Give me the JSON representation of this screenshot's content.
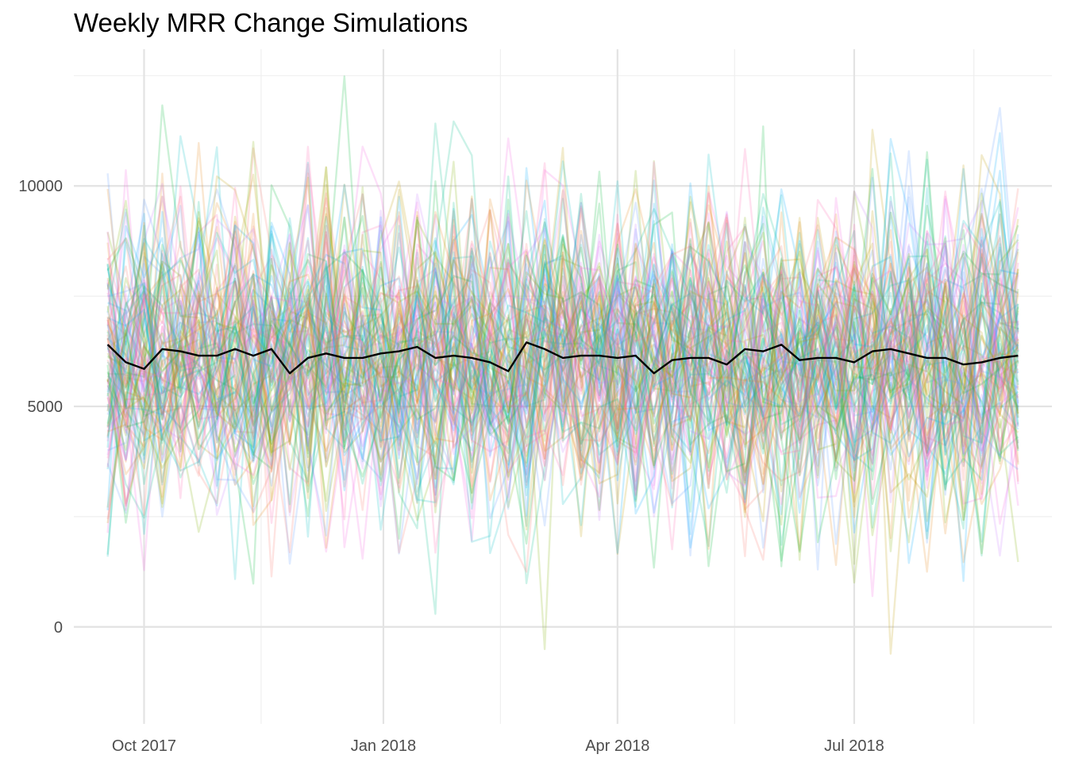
{
  "chart_data": {
    "type": "line",
    "title": "Weekly MRR Change Simulations",
    "xlabel": "",
    "ylabel": "",
    "x_ticks": [
      {
        "date": "2017-10-01",
        "label": "Oct 2017"
      },
      {
        "date": "2018-01-01",
        "label": "Jan 2018"
      },
      {
        "date": "2018-04-01",
        "label": "Apr 2018"
      },
      {
        "date": "2018-07-01",
        "label": "Jul 2018"
      }
    ],
    "x_minor_ticks": [
      "2017-11-15",
      "2018-02-15",
      "2018-05-16",
      "2018-08-16"
    ],
    "xlim": [
      "2017-09-04",
      "2018-09-15"
    ],
    "y_ticks": [
      0,
      5000,
      10000
    ],
    "y_minor_ticks": [
      2500,
      7500,
      12500
    ],
    "ylim": [
      -2200,
      13100
    ],
    "grid": true,
    "legend": "none",
    "simulation_count": 100,
    "simulation_colors": [
      "#F8766D",
      "#E7861B",
      "#C09B00",
      "#7CAE00",
      "#00BA38",
      "#00C08B",
      "#00BFC4",
      "#00A9FF",
      "#619CFF",
      "#C77CFF",
      "#F564E3",
      "#FF64B0"
    ],
    "mean_series": {
      "name": "mean",
      "color": "#000000",
      "x": [
        "2017-09-17",
        "2017-09-24",
        "2017-10-01",
        "2017-10-08",
        "2017-10-15",
        "2017-10-22",
        "2017-10-29",
        "2017-11-05",
        "2017-11-12",
        "2017-11-19",
        "2017-11-26",
        "2017-12-03",
        "2017-12-10",
        "2017-12-17",
        "2017-12-24",
        "2017-12-31",
        "2018-01-07",
        "2018-01-14",
        "2018-01-21",
        "2018-01-28",
        "2018-02-04",
        "2018-02-11",
        "2018-02-18",
        "2018-02-25",
        "2018-03-04",
        "2018-03-11",
        "2018-03-18",
        "2018-03-25",
        "2018-04-01",
        "2018-04-08",
        "2018-04-15",
        "2018-04-22",
        "2018-04-29",
        "2018-05-06",
        "2018-05-13",
        "2018-05-20",
        "2018-05-27",
        "2018-06-03",
        "2018-06-10",
        "2018-06-17",
        "2018-06-24",
        "2018-07-01",
        "2018-07-08",
        "2018-07-15",
        "2018-07-22",
        "2018-07-29",
        "2018-08-05",
        "2018-08-12",
        "2018-08-19",
        "2018-08-26",
        "2018-09-02"
      ],
      "values": [
        6400,
        6000,
        5850,
        6300,
        6250,
        6150,
        6150,
        6300,
        6150,
        6300,
        5750,
        6100,
        6200,
        6100,
        6100,
        6200,
        6250,
        6350,
        6100,
        6150,
        6100,
        6000,
        5800,
        6450,
        6300,
        6100,
        6150,
        6150,
        6100,
        6150,
        5750,
        6050,
        6100,
        6100,
        5950,
        6300,
        6250,
        6400,
        6050,
        6100,
        6100,
        6000,
        6250,
        6300,
        6200,
        6100,
        6100,
        5950,
        6000,
        6100,
        6150
      ]
    }
  }
}
